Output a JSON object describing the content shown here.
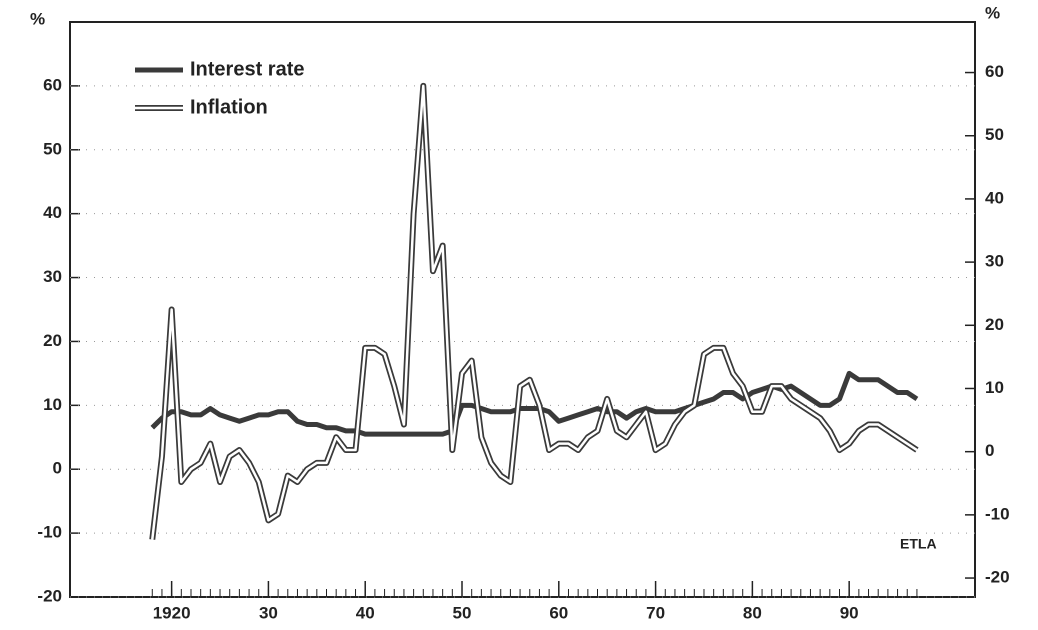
{
  "chart_data": {
    "type": "line",
    "ylabel": "%",
    "y2label": "%",
    "annotation": "ETLA",
    "x": [
      1918,
      1919,
      1920,
      1921,
      1922,
      1923,
      1924,
      1925,
      1926,
      1927,
      1928,
      1929,
      1930,
      1931,
      1932,
      1933,
      1934,
      1935,
      1936,
      1937,
      1938,
      1939,
      1940,
      1941,
      1942,
      1943,
      1944,
      1945,
      1946,
      1947,
      1948,
      1949,
      1950,
      1951,
      1952,
      1953,
      1954,
      1955,
      1956,
      1957,
      1958,
      1959,
      1960,
      1961,
      1962,
      1963,
      1964,
      1965,
      1966,
      1967,
      1968,
      1969,
      1970,
      1971,
      1972,
      1973,
      1974,
      1975,
      1976,
      1977,
      1978,
      1979,
      1980,
      1981,
      1982,
      1983,
      1984,
      1985,
      1986,
      1987,
      1988,
      1989,
      1990,
      1991,
      1992,
      1993,
      1994,
      1995,
      1996,
      1997
    ],
    "series": [
      {
        "name": "Interest rate",
        "color": "#3a3a3a",
        "style": "solid",
        "values": [
          6.5,
          8,
          9,
          9,
          8.5,
          8.5,
          9.5,
          8.5,
          8,
          7.5,
          8,
          8.5,
          8.5,
          9,
          9,
          7.5,
          7,
          7,
          6.5,
          6.5,
          6,
          6,
          5.5,
          5.5,
          5.5,
          5.5,
          5.5,
          5.5,
          5.5,
          5.5,
          5.5,
          6,
          10,
          10,
          9.5,
          9,
          9,
          9,
          9.5,
          9.5,
          9.5,
          9,
          7.5,
          8,
          8.5,
          9,
          9.5,
          9,
          9,
          8,
          9,
          9.5,
          9,
          9,
          9,
          9.5,
          10,
          10.5,
          11,
          12,
          12,
          11,
          12,
          12.5,
          13,
          12.5,
          13,
          12,
          11,
          10,
          10,
          11,
          15,
          14,
          14,
          14,
          13,
          12,
          12,
          11
        ]
      },
      {
        "name": "Inflation",
        "color": "#3a3a3a",
        "style": "double",
        "values": [
          -11,
          2,
          25,
          -2,
          0,
          1,
          4,
          -2,
          2,
          3,
          1,
          -2,
          -8,
          -7,
          -1,
          -2,
          0,
          1,
          1,
          5,
          3,
          3,
          19,
          19,
          18,
          13,
          7,
          40,
          60,
          31,
          35,
          3,
          15,
          17,
          5,
          1,
          -1,
          -2,
          13,
          14,
          10,
          3,
          4,
          4,
          3,
          5,
          6,
          11,
          6,
          5,
          7,
          9,
          3,
          4,
          7,
          9,
          10,
          18,
          19,
          19,
          15,
          13,
          9,
          9,
          13,
          13,
          11,
          10,
          9,
          8,
          6,
          3,
          4,
          6,
          7,
          7,
          6,
          5,
          4,
          3
        ]
      }
    ],
    "xlim": [
      1909.5,
      2003
    ],
    "xticks": [
      {
        "value": 1920,
        "label": "1920"
      },
      {
        "value": 1930,
        "label": "30"
      },
      {
        "value": 1940,
        "label": "40"
      },
      {
        "value": 1950,
        "label": "50"
      },
      {
        "value": 1960,
        "label": "60"
      },
      {
        "value": 1970,
        "label": "70"
      },
      {
        "value": 1980,
        "label": "80"
      },
      {
        "value": 1990,
        "label": "90"
      }
    ],
    "ylim": [
      -20,
      70
    ],
    "yticks": [
      -20,
      -10,
      0,
      10,
      20,
      30,
      40,
      50,
      60
    ],
    "y2lim": [
      -23,
      68
    ],
    "y2ticks": [
      -20,
      -10,
      0,
      10,
      20,
      30,
      40,
      50,
      60
    ],
    "grid": true,
    "legend": "upper left"
  }
}
